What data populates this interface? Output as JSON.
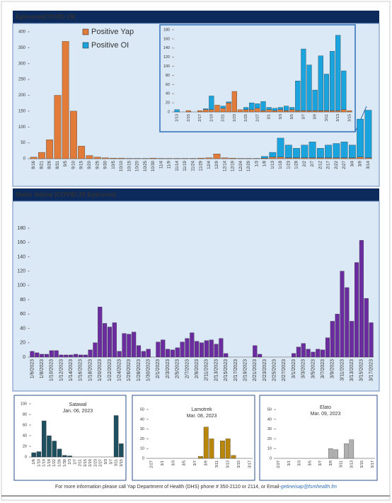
{
  "chart_data": [
    {
      "type": "bar",
      "title": "Epicurve|COVID-19|",
      "categories": [
        "8/16",
        "8/21",
        "8/26",
        "8/31",
        "9/5",
        "9/10",
        "9/15",
        "9/20",
        "9/25",
        "9/30",
        "10/5",
        "10/10",
        "10/15",
        "10/20",
        "10/25",
        "10/30",
        "11/4",
        "11/9",
        "11/14",
        "11/19",
        "11/24",
        "11/29",
        "12/4",
        "12/9",
        "12/14",
        "12/19",
        "12/24",
        "12/29",
        "1/3",
        "1/8",
        "1/13",
        "1/18",
        "1/23",
        "1/28",
        "2/2",
        "2/7",
        "2/12",
        "2/17",
        "2/22",
        "2/27",
        "3/4",
        "3/9",
        "3/14"
      ],
      "series": [
        {
          "name": "Positive Yap",
          "color": "#e07b39",
          "values": [
            5,
            20,
            60,
            200,
            370,
            150,
            40,
            10,
            5,
            3,
            2,
            2,
            1,
            1,
            1,
            2,
            1,
            1,
            1,
            1,
            1,
            2,
            3,
            15,
            3,
            2,
            1,
            1,
            1,
            2,
            5,
            5,
            3,
            3,
            3,
            3,
            3,
            3,
            3,
            3,
            3,
            5,
            3
          ]
        },
        {
          "name": "Positive OI",
          "color": "#1aa3dd",
          "values": [
            0,
            0,
            0,
            0,
            0,
            0,
            0,
            0,
            0,
            0,
            0,
            0,
            0,
            0,
            0,
            0,
            0,
            0,
            0,
            0,
            0,
            0,
            0,
            0,
            0,
            0,
            0,
            0,
            0,
            5,
            15,
            60,
            40,
            30,
            40,
            50,
            30,
            40,
            45,
            50,
            40,
            120,
            150
          ]
        }
      ],
      "ylim": [
        0,
        400
      ],
      "yticks": [
        0,
        50,
        100,
        150,
        200,
        250,
        300,
        350,
        400
      ]
    },
    {
      "type": "bar",
      "categories": [
        "2/13",
        null,
        "2/15",
        null,
        "2/17",
        null,
        "2/19",
        null,
        "2/21",
        null,
        "2/23",
        null,
        "2/25",
        null,
        "2/27",
        null,
        "3/1",
        null,
        "3/3",
        null,
        "3/5",
        null,
        "3/7",
        null,
        "3/9",
        null,
        "3/11",
        null,
        "3/13",
        null,
        "3/15"
      ],
      "series": [
        {
          "color": "#e07b39",
          "values": [
            0,
            0,
            3,
            0,
            3,
            5,
            5,
            15,
            8,
            20,
            45,
            5,
            5,
            5,
            8,
            3,
            5,
            3,
            5,
            3,
            5,
            3,
            3,
            3,
            3,
            3,
            3,
            3,
            3,
            5,
            3
          ]
        },
        {
          "color": "#1aa3dd",
          "values": [
            5,
            0,
            0,
            0,
            0,
            2,
            30,
            0,
            5,
            2,
            0,
            0,
            5,
            15,
            10,
            20,
            5,
            5,
            5,
            10,
            5,
            65,
            135,
            100,
            45,
            120,
            80,
            130,
            165,
            85,
            0
          ]
        }
      ],
      "ylim": [
        0,
        180
      ],
      "yticks": [
        0,
        20,
        40,
        60,
        80,
        100,
        120,
        140,
        160,
        180
      ]
    },
    {
      "type": "bar",
      "title": "Outer Island |COVID-19 Epicurve|",
      "categories": [
        "1/6/2023",
        null,
        "1/8/2023",
        null,
        "1/10/2023",
        null,
        "1/12/2023",
        null,
        "1/14/2023",
        null,
        "1/16/2023",
        null,
        "1/18/2023",
        null,
        "1/20/2023",
        null,
        "1/22/2023",
        null,
        "1/24/2023",
        null,
        "1/26/2023",
        null,
        "1/28/2023",
        null,
        "1/30/2023",
        null,
        "2/1/2023",
        null,
        "2/3/2023",
        null,
        "2/5/2023",
        null,
        "2/7/2023",
        null,
        "2/9/2023",
        null,
        "2/11/2023",
        null,
        "2/13/2023",
        null,
        "2/15/2023",
        null,
        "2/17/2023",
        null,
        "2/19/2023",
        null,
        "2/21/2023",
        null,
        "2/23/2023",
        null,
        "2/25/2023",
        null,
        "2/27/2023",
        null,
        "3/1/2023",
        null,
        "3/3/2023",
        null,
        "3/5/2023",
        null,
        "3/7/2023",
        null,
        "3/9/2023",
        null,
        "3/11/2023",
        null,
        "3/13/2023",
        null,
        "3/15/2023",
        null,
        "3/17/2023"
      ],
      "series": [
        {
          "color": "#6a2c9e",
          "values": [
            8,
            6,
            4,
            4,
            9,
            9,
            3,
            3,
            3,
            4,
            3,
            3,
            10,
            20,
            70,
            47,
            42,
            48,
            8,
            33,
            32,
            35,
            16,
            8,
            11,
            0,
            21,
            24,
            11,
            10,
            13,
            21,
            26,
            34,
            22,
            20,
            23,
            24,
            18,
            26,
            5,
            0,
            0,
            0,
            0,
            0,
            16,
            4,
            0,
            0,
            0,
            0,
            0,
            0,
            5,
            14,
            19,
            11,
            7,
            11,
            10,
            27,
            50,
            60,
            120,
            97,
            50,
            132,
            163,
            82,
            48
          ]
        }
      ],
      "ylim": [
        0,
        180
      ],
      "yticks": [
        0,
        20,
        40,
        60,
        80,
        100,
        120,
        140,
        160,
        180
      ]
    },
    {
      "type": "bar",
      "title": "Satawal",
      "subtitle": "Jan. 06, 2023",
      "categories": [
        "1/6",
        "1/10",
        "1/14",
        "1/18",
        "1/22",
        "1/26",
        "1/30",
        "2/3",
        "2/7",
        "2/11",
        "2/15",
        "2/19",
        "2/23",
        "2/27",
        "3/3",
        "3/7",
        "3/11",
        "3/15"
      ],
      "series": [
        {
          "color": "#1d4f5e",
          "values": [
            8,
            10,
            68,
            40,
            30,
            15,
            3,
            2,
            0,
            0,
            0,
            0,
            0,
            0,
            0,
            0,
            78,
            25
          ]
        }
      ],
      "ylim": [
        0,
        100
      ],
      "yticks": [
        0,
        20,
        40,
        60,
        80,
        100
      ]
    },
    {
      "type": "bar",
      "title": "Lamotrek",
      "subtitle": "Mar. 08, 2023",
      "categories": [
        "2/27",
        null,
        "3/1",
        null,
        "3/3",
        null,
        "3/5",
        null,
        "3/7",
        null,
        "3/9",
        null,
        "3/11",
        null,
        "3/13",
        null,
        "3/15",
        null,
        "3/17"
      ],
      "series": [
        {
          "color": "#b8860b",
          "values": [
            0,
            0,
            0,
            0,
            0,
            0,
            0,
            0,
            0,
            2,
            32,
            20,
            0,
            18,
            20,
            3,
            0,
            0,
            0
          ]
        }
      ],
      "ylim": [
        0,
        50
      ],
      "yticks": [
        0,
        10,
        20,
        30,
        40,
        50
      ]
    },
    {
      "type": "bar",
      "title": "Elato",
      "subtitle": "Mar. 09, 2023",
      "categories": [
        "2/27",
        null,
        "3/1",
        null,
        "3/3",
        null,
        "3/5",
        null,
        "3/7",
        null,
        "3/9",
        null,
        "3/11",
        null,
        "3/13",
        null,
        "3/15",
        null,
        "3/17"
      ],
      "series": [
        {
          "color": "#b0b0b0",
          "values": [
            0,
            0,
            0,
            0,
            0,
            0,
            0,
            0,
            0,
            0,
            10,
            9,
            0,
            15,
            19,
            0,
            0,
            0,
            0
          ]
        }
      ],
      "ylim": [
        0,
        50
      ],
      "yticks": [
        0,
        10,
        20,
        30,
        40,
        50
      ]
    }
  ],
  "footer": {
    "text": "For more information please call Yap Department of Health (DHS) phone # 350-2110 or 2114, or Email-",
    "email": "getineisap@fsmhealth.fm"
  }
}
